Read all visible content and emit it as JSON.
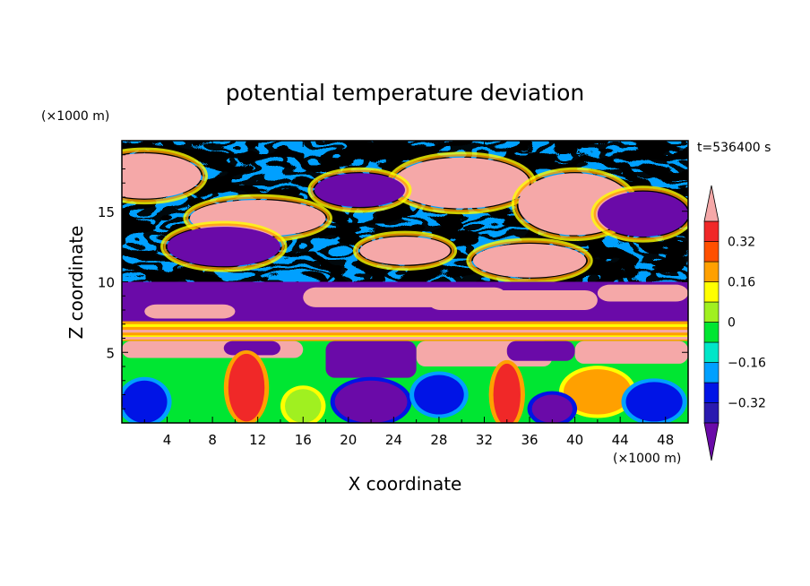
{
  "chart_data": {
    "type": "heatmap",
    "title": "potential temperature deviation",
    "xlabel": "X coordinate",
    "ylabel": "Z coordinate",
    "x_unit": "(×1000 m)",
    "y_unit": "(×1000 m)",
    "time_label": "t=536400 s",
    "xlim": [
      0,
      50
    ],
    "ylim": [
      0,
      20
    ],
    "x_ticks": [
      "4",
      "8",
      "12",
      "16",
      "20",
      "24",
      "28",
      "32",
      "36",
      "40",
      "44",
      "48"
    ],
    "y_ticks": [
      "5",
      "10",
      "15"
    ],
    "colorbar": {
      "levels": [
        -0.4,
        -0.32,
        -0.24,
        -0.16,
        -0.08,
        0,
        0.08,
        0.16,
        0.24,
        0.32,
        0.4
      ],
      "tick_labels": [
        "0.32",
        "0.16",
        "0",
        "-0.16",
        "-0.32"
      ],
      "tick_values": [
        0.32,
        0.16,
        0,
        -0.16,
        -0.32
      ],
      "colors": [
        "#6a0aa8",
        "#2a1ab0",
        "#0014e6",
        "#00a0ff",
        "#00e6c8",
        "#00e632",
        "#a0f020",
        "#ffff00",
        "#ffa000",
        "#ff5000",
        "#f02828",
        "#f5a8a8"
      ],
      "extend": "both"
    },
    "field_description": {
      "top_layer_z_range": [
        10,
        20
      ],
      "inversion_band_z": [
        5.8,
        7.2
      ],
      "lower_layer_z_range": [
        0,
        5
      ]
    }
  }
}
